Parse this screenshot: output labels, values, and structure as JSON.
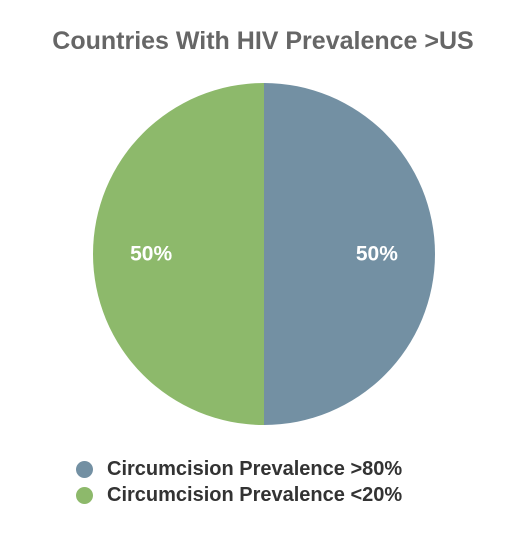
{
  "chart_data": {
    "type": "pie",
    "title": "Countries With HIV Prevalence >US",
    "slices": [
      {
        "label": "Circumcision Prevalence >80%",
        "value": 50,
        "display": "50%",
        "color": "#7390a3"
      },
      {
        "label": "Circumcision Prevalence <20%",
        "value": 50,
        "display": "50%",
        "color": "#8db96b"
      }
    ],
    "legend_position": "bottom"
  }
}
